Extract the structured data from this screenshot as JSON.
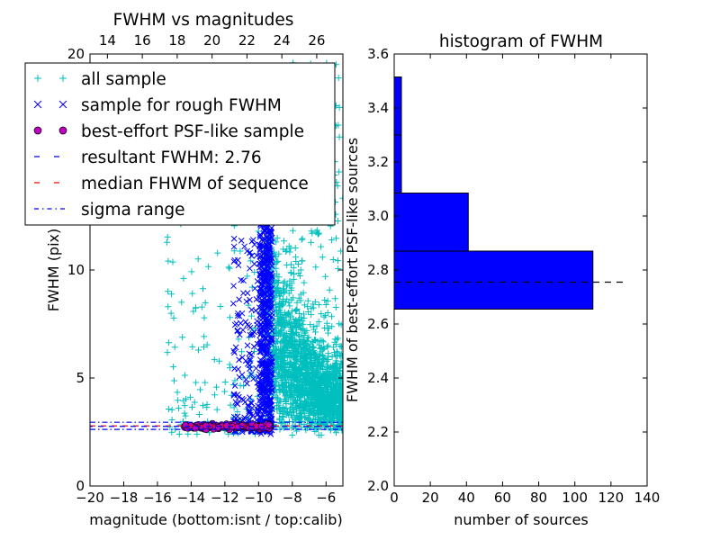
{
  "chart_data": [
    {
      "type": "scatter",
      "title": "FWHM vs magnitudes",
      "xlabel": "magnitude (bottom:isnt / top:calib)",
      "ylabel": "FWHM (pix)",
      "xlim": [
        -20,
        -5
      ],
      "ylim": [
        0,
        20
      ],
      "x_ticks": [
        -20,
        -18,
        -16,
        -14,
        -12,
        -10,
        -8,
        -6
      ],
      "x_tick_labels": [
        "−20",
        "−18",
        "−16",
        "−14",
        "−12",
        "−10",
        "−8",
        "−6"
      ],
      "y_ticks": [
        0,
        5,
        10,
        20
      ],
      "y_tick_labels": [
        "0",
        "5",
        "10",
        "20"
      ],
      "top_xlim": [
        13,
        27.5
      ],
      "top_x_ticks": [
        14,
        16,
        18,
        20,
        22,
        24,
        26
      ],
      "top_x_tick_labels": [
        "14",
        "16",
        "18",
        "20",
        "22",
        "24",
        "26"
      ],
      "legend_position": "upper-left",
      "series": [
        {
          "name": "all sample",
          "marker": "+",
          "color": "#00bfbf"
        },
        {
          "name": "sample for rough FWHM",
          "marker": "x",
          "color": "#0000ff"
        },
        {
          "name": "best-effort PSF-like sample",
          "marker": "o",
          "color": "#bf00bf"
        }
      ],
      "lines": [
        {
          "name": "resultant FWHM: 2.76",
          "style": "dashed",
          "color": "#0000ff",
          "y": 2.76
        },
        {
          "name": "median FHWM of sequence",
          "style": "dashed",
          "color": "#ff0000",
          "y": 2.78
        },
        {
          "name": "sigma range",
          "style": "dashdot",
          "color": "#0000ff",
          "y_values": [
            2.62,
            2.95
          ]
        }
      ],
      "scatter_regions": {
        "all_sample": {
          "x_range": [
            -15.5,
            -5
          ],
          "y_range": [
            2.0,
            20
          ]
        },
        "rough_sample": {
          "x_range": [
            -11.5,
            -9.2
          ],
          "y_range": [
            2.3,
            12.8
          ]
        },
        "psf_like": {
          "x_range": [
            -14.5,
            -9.3
          ],
          "y_range": [
            2.6,
            3.0
          ]
        }
      }
    },
    {
      "type": "bar",
      "orientation": "horizontal",
      "title": "histogram of FWHM",
      "xlabel": "number of sources",
      "ylabel": "FWHM of best-effort PSF-like sources",
      "xlim": [
        0,
        140
      ],
      "ylim": [
        2.0,
        3.6
      ],
      "x_ticks": [
        0,
        20,
        40,
        60,
        80,
        100,
        120,
        140
      ],
      "x_tick_labels": [
        "0",
        "20",
        "40",
        "60",
        "80",
        "100",
        "120",
        "140"
      ],
      "y_ticks": [
        2.0,
        2.2,
        2.4,
        2.6,
        2.8,
        3.0,
        3.2,
        3.4,
        3.6
      ],
      "y_tick_labels": [
        "2.0",
        "2.2",
        "2.4",
        "2.6",
        "2.8",
        "3.0",
        "3.2",
        "3.4",
        "3.6"
      ],
      "bar_color": "#0000ff",
      "bins": [
        {
          "y0": 2.655,
          "y1": 2.87,
          "count": 110
        },
        {
          "y0": 2.87,
          "y1": 3.085,
          "count": 41
        },
        {
          "y0": 3.085,
          "y1": 3.3,
          "count": 4
        },
        {
          "y0": 3.3,
          "y1": 3.515,
          "count": 4
        }
      ],
      "reference_line": {
        "y": 2.755,
        "x_range": [
          0,
          129
        ],
        "style": "dashed",
        "color": "#000000"
      }
    }
  ]
}
